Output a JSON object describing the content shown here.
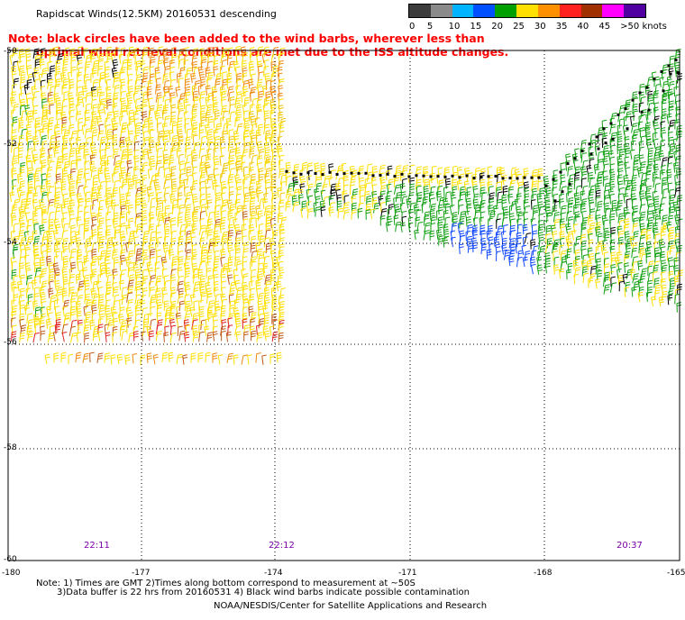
{
  "title": "Rapidscat Winds(12.5KM) 20160531 descending",
  "note_lines": [
    "Note: black circles have been added to the wind barbs, wherever less than",
    "optimal wind retrieval conditions are met due to the ISS altitude changes."
  ],
  "color_scale": {
    "labels": [
      "0",
      "5",
      "10",
      "15",
      "20",
      "25",
      "30",
      "35",
      "40",
      "45",
      ">50 knots"
    ],
    "colors": [
      "#3c3c3c",
      "#8a8a8a",
      "#00b4ff",
      "#0050ff",
      "#00a000",
      "#ffe000",
      "#ff9000",
      "#ff2020",
      "#a03000",
      "#ff00ff",
      "#5000a0"
    ]
  },
  "axes": {
    "lat_labels": [
      "-50",
      "-52",
      "-54",
      "-56",
      "-58",
      "-60"
    ],
    "lon_labels": [
      "-180",
      "-177",
      "-174",
      "-171",
      "-168",
      "-165"
    ]
  },
  "time_labels": [
    "22:11",
    "22:12",
    "20:37"
  ],
  "footnotes": {
    "line1": "Note: 1) Times are GMT 2)Times along bottom correspond to measurement at ~50S",
    "line2": "3)Data buffer is 22 hrs from 20160531 4) Black wind barbs indicate possible contamination"
  },
  "credits": "NOAA/NESDIS/Center for Satellite Applications and Research"
}
